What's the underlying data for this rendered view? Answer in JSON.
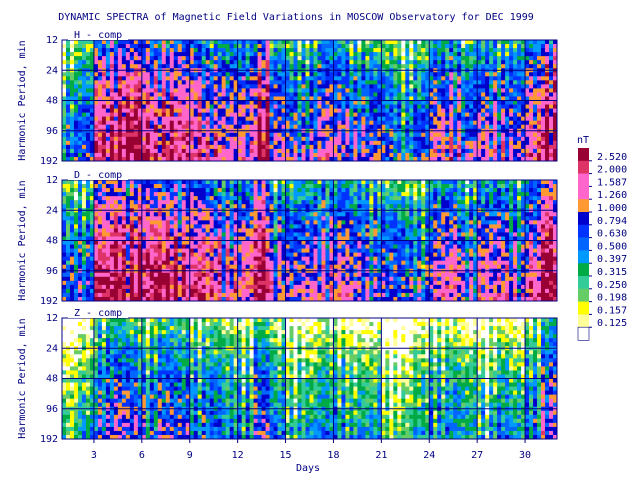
{
  "chart_data": {
    "type": "heatmap",
    "title": "DYNAMIC SPECTRA of Magnetic Field Variations in MOSCOW Observatory for DEC 1999",
    "xlabel": "Days",
    "ylabel": "Harmonic Period, min",
    "xlim": [
      1,
      32
    ],
    "x_ticks": [
      3,
      6,
      9,
      12,
      15,
      18,
      21,
      24,
      27,
      30
    ],
    "x_tick_labels": [
      "3",
      "6",
      "9",
      "12",
      "15",
      "18",
      "21",
      "24",
      "27",
      "30"
    ],
    "y_scale": "log",
    "ylim": [
      12,
      192
    ],
    "y_ticks": [
      12,
      24,
      48,
      96,
      192
    ],
    "y_tick_labels": [
      "12",
      "24",
      "48",
      "96",
      "192"
    ],
    "grid": true,
    "panels": [
      {
        "name": "H - comp",
        "activity": [
          0.5,
          0.6,
          1.8,
          2.2,
          2.1,
          1.7,
          1.9,
          1.6,
          1.5,
          1.3,
          1.0,
          1.1,
          2.3,
          0.9,
          0.7,
          0.8,
          1.0,
          0.9,
          0.8,
          0.7,
          0.6,
          0.5,
          0.6,
          1.0,
          1.1,
          0.7,
          0.9,
          1.0,
          0.8,
          1.2,
          2.4
        ]
      },
      {
        "name": "D - comp",
        "activity": [
          0.6,
          0.7,
          2.0,
          2.4,
          2.3,
          2.0,
          2.1,
          1.8,
          1.6,
          1.4,
          1.2,
          1.2,
          2.2,
          1.0,
          0.8,
          0.9,
          1.1,
          1.0,
          0.9,
          0.8,
          0.7,
          0.6,
          0.6,
          1.0,
          1.1,
          0.8,
          1.0,
          1.1,
          0.9,
          1.3,
          2.5
        ]
      },
      {
        "name": "Z - comp",
        "activity": [
          0.2,
          0.3,
          0.7,
          0.8,
          0.7,
          0.6,
          0.7,
          0.6,
          0.5,
          0.5,
          0.4,
          0.4,
          0.7,
          0.4,
          0.3,
          0.3,
          0.4,
          0.4,
          0.3,
          0.3,
          0.2,
          0.2,
          0.3,
          0.4,
          0.4,
          0.3,
          0.3,
          0.4,
          0.3,
          0.5,
          0.9
        ]
      }
    ],
    "colorbar": {
      "unit": "nT",
      "levels": [
        "2.520",
        "2.000",
        "1.587",
        "1.260",
        "1.000",
        "0.794",
        "0.630",
        "0.500",
        "0.397",
        "0.315",
        "0.250",
        "0.198",
        "0.157",
        "0.125"
      ],
      "colors": [
        "#990033",
        "#dd3366",
        "#ff66cc",
        "#ff66cc",
        "#ff9933",
        "#0000cc",
        "#0033ff",
        "#0066ff",
        "#0099ff",
        "#00aa44",
        "#33cc99",
        "#66cc66",
        "#ffff00",
        "#ffff99",
        "#ffffff"
      ]
    }
  }
}
